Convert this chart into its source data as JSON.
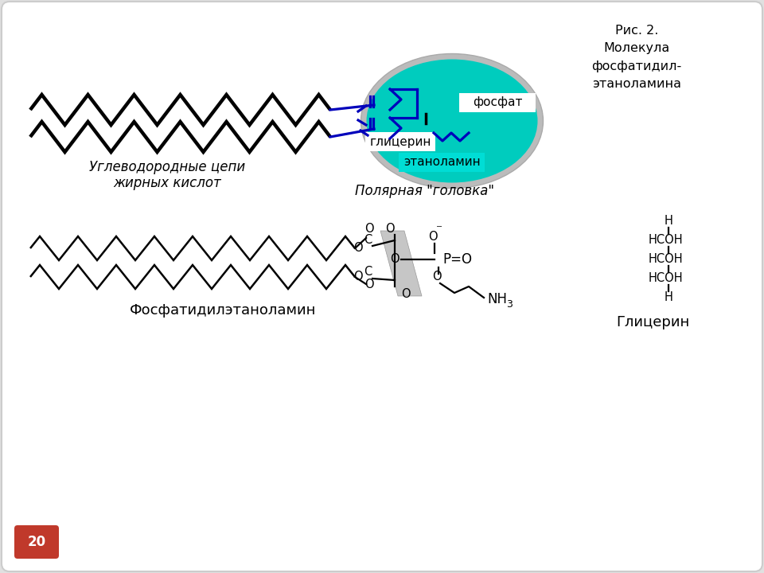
{
  "bg_color": "#e0e0e0",
  "card_color": "#ffffff",
  "teal_color": "#00CCBE",
  "blue_line_color": "#0000BB",
  "black_line_color": "#000000",
  "title_text": "Рис. 2.\nМолекула\nфосфатидил-\nэтаноламина",
  "label_fossat": "фосфат",
  "label_glitserin_top": "глицерин",
  "label_etanolamin": "этаноламин",
  "label_polar": "Полярная \"головка\"",
  "label_uglevod": "Углеводородные цепи",
  "label_zhirn": "жирных кислот",
  "label_fosf_bottom": "Фосфатидилэтаноламин",
  "label_glitserin_bottom": "Глицерин",
  "page_num": "20"
}
